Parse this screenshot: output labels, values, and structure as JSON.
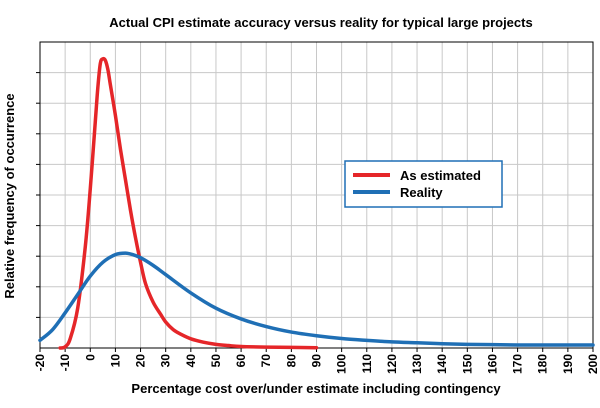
{
  "chart_data": {
    "type": "line",
    "title": "Actual CPI estimate accuracy versus reality for typical large projects",
    "xlabel": "Percentage cost over/under estimate including contingency",
    "ylabel": "Relative frequency of occurrence",
    "xlim": [
      -20,
      200
    ],
    "ylim": [
      0,
      1
    ],
    "x_ticks": [
      -20,
      -10,
      0,
      10,
      20,
      30,
      40,
      50,
      60,
      70,
      80,
      90,
      100,
      110,
      120,
      130,
      140,
      150,
      160,
      170,
      180,
      190,
      200
    ],
    "x_tick_labels": [
      "-20",
      "-10",
      "0",
      "10",
      "20",
      "30",
      "40",
      "50",
      "60",
      "70",
      "80",
      "90",
      "100",
      "110",
      "120",
      "130",
      "140",
      "150",
      "160",
      "170",
      "180",
      "190",
      "200"
    ],
    "y_gridlines": 10,
    "grid": true,
    "legend_position": "center-right",
    "y_tick_labels_shown": false,
    "series": [
      {
        "name": "As estimated",
        "color": "#e52629",
        "x": [
          -12,
          -10,
          -8,
          -5,
          -2,
          0,
          2,
          3,
          4,
          5,
          6,
          7,
          8,
          10,
          12,
          14,
          16,
          18,
          20,
          22,
          25,
          28,
          30,
          33,
          36,
          40,
          45,
          50,
          55,
          60,
          70,
          80,
          90
        ],
        "values": [
          0,
          0.004,
          0.03,
          0.13,
          0.33,
          0.52,
          0.74,
          0.85,
          0.93,
          0.945,
          0.94,
          0.91,
          0.86,
          0.76,
          0.65,
          0.55,
          0.45,
          0.36,
          0.28,
          0.21,
          0.15,
          0.11,
          0.085,
          0.06,
          0.045,
          0.03,
          0.019,
          0.012,
          0.008,
          0.005,
          0.003,
          0.002,
          0.001
        ]
      },
      {
        "name": "Reality",
        "color": "#1f6fb5",
        "x": [
          -20,
          -15,
          -10,
          -5,
          0,
          5,
          10,
          14,
          17,
          20,
          25,
          30,
          40,
          50,
          60,
          70,
          80,
          90,
          100,
          110,
          120,
          130,
          140,
          150,
          160,
          170,
          180,
          190,
          200
        ],
        "values": [
          0.025,
          0.06,
          0.115,
          0.175,
          0.235,
          0.28,
          0.305,
          0.31,
          0.305,
          0.295,
          0.27,
          0.24,
          0.18,
          0.13,
          0.095,
          0.07,
          0.052,
          0.04,
          0.031,
          0.025,
          0.02,
          0.017,
          0.014,
          0.012,
          0.011,
          0.01,
          0.01,
          0.01,
          0.01
        ]
      }
    ]
  }
}
